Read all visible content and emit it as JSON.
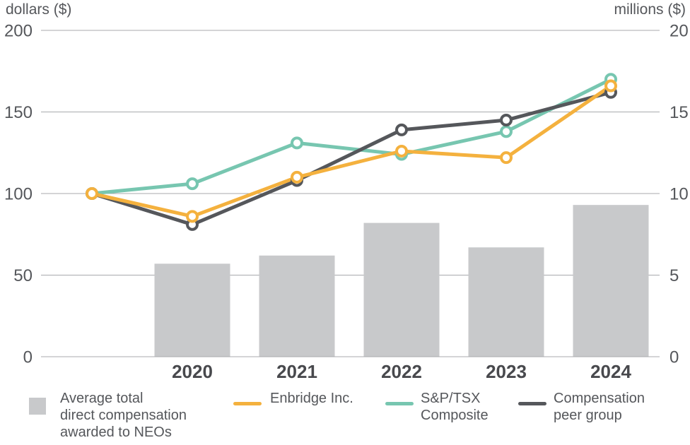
{
  "colors": {
    "background": "#ffffff",
    "gridline": "#a8aaad",
    "axis_text": "#55575b",
    "year_text": "#48494d",
    "legend_text": "#55575b",
    "bar": "#c8c9cb",
    "enbridge": "#f4b13e",
    "tsx": "#77c6b0",
    "peer": "#55575b",
    "marker_fill": "#ffffff"
  },
  "chart_data": {
    "type": "combo-bar-line",
    "title": "",
    "categories": [
      "2020",
      "2021",
      "2022",
      "2023",
      "2024"
    ],
    "left_axis": {
      "label": "dollars ($)",
      "range": [
        0,
        200
      ],
      "ticks": [
        0,
        50,
        100,
        150,
        200
      ]
    },
    "right_axis": {
      "label": "millions ($)",
      "range": [
        0,
        20
      ],
      "ticks": [
        0,
        5,
        10,
        15,
        20
      ]
    },
    "grid": "horizontal",
    "legend_position": "bottom",
    "bar_series": {
      "name": "Average total direct compensation awarded to NEOs",
      "axis": "right",
      "color_key": "bar",
      "values": [
        5.7,
        6.2,
        8.2,
        6.7,
        9.3
      ]
    },
    "line_series": [
      {
        "name": "Enbridge Inc.",
        "axis": "left",
        "color_key": "enbridge",
        "x": [
          "start",
          "2020",
          "2021",
          "2022",
          "2023",
          "2024"
        ],
        "values": [
          100,
          86,
          110,
          126,
          122,
          166
        ]
      },
      {
        "name": "S&P/TSX Composite",
        "axis": "left",
        "color_key": "tsx",
        "x": [
          "start",
          "2020",
          "2021",
          "2022",
          "2023",
          "2024"
        ],
        "values": [
          100,
          106,
          131,
          124,
          138,
          170
        ]
      },
      {
        "name": "Compensation peer group",
        "axis": "left",
        "color_key": "peer",
        "x": [
          "start",
          "2020",
          "2021",
          "2022",
          "2023",
          "2024"
        ],
        "values": [
          100,
          81,
          108,
          139,
          145,
          162
        ]
      }
    ]
  },
  "legend": {
    "items": [
      {
        "swatch": "square",
        "color_key": "bar",
        "label_lines": [
          "Average total",
          "direct compensation",
          "awarded to NEOs"
        ]
      },
      {
        "swatch": "line",
        "color_key": "enbridge",
        "label_lines": [
          "Enbridge Inc."
        ]
      },
      {
        "swatch": "line",
        "color_key": "tsx",
        "label_lines": [
          "S&P/TSX",
          "Composite"
        ]
      },
      {
        "swatch": "line",
        "color_key": "peer",
        "label_lines": [
          "Compensation",
          "peer group"
        ]
      }
    ]
  }
}
